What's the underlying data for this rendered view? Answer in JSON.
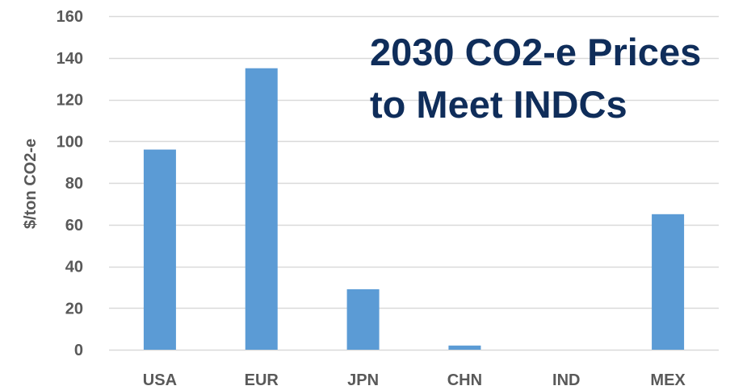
{
  "chart_data": {
    "type": "bar",
    "title_lines": [
      "2030 CO2-e Prices",
      "to Meet INDCs"
    ],
    "xlabel": "",
    "ylabel": "$/ton CO2-e",
    "categories": [
      "USA",
      "EUR",
      "JPN",
      "CHN",
      "IND",
      "MEX"
    ],
    "values": [
      96,
      135,
      29,
      2,
      0,
      65
    ],
    "ylim": [
      0,
      160
    ],
    "yticks": [
      0,
      20,
      40,
      60,
      80,
      100,
      120,
      140,
      160
    ],
    "grid": true,
    "legend": "none"
  },
  "colors": {
    "bar": "#5b9bd5",
    "grid": "#d9d9d9",
    "axis_text": "#595959",
    "title": "#0f2d5a"
  }
}
